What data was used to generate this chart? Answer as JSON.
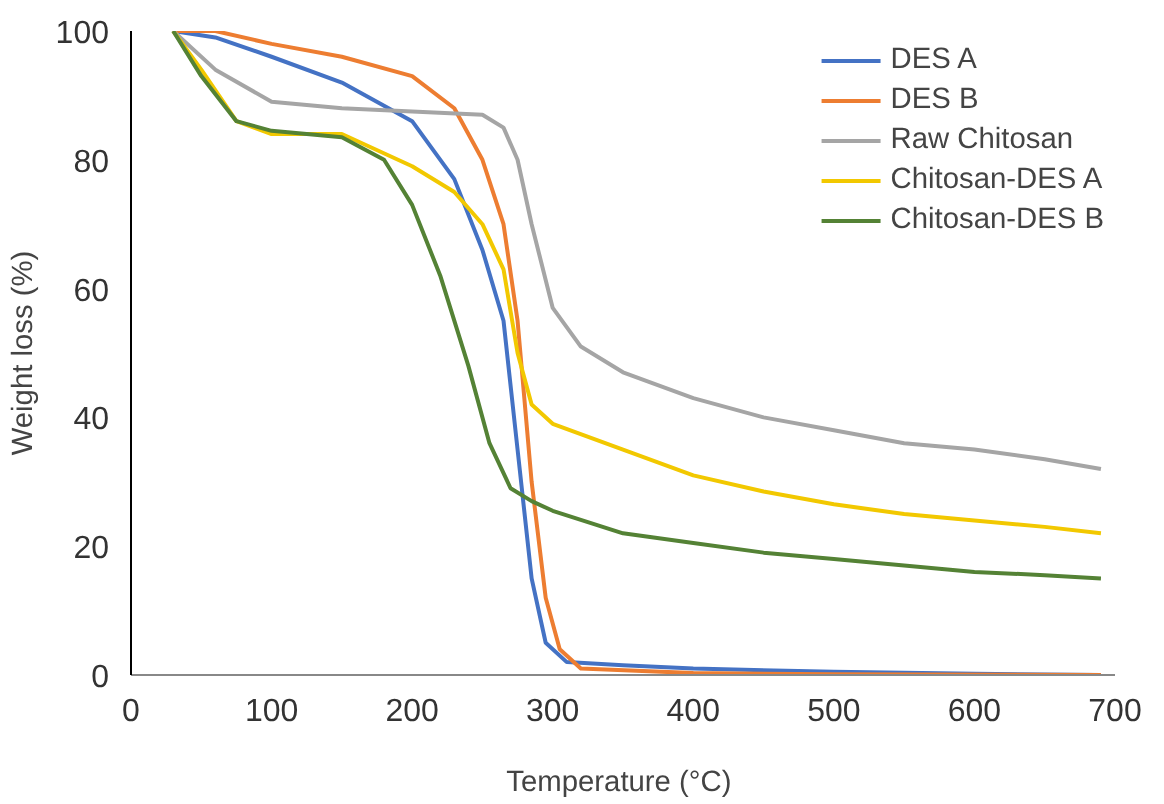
{
  "chart_data": {
    "type": "line",
    "xlabel": "Temperature  (°C)",
    "ylabel": "Weight loss (%)",
    "xlim": [
      0,
      700
    ],
    "ylim": [
      0,
      100
    ],
    "xticks": [
      0,
      100,
      200,
      300,
      400,
      500,
      600,
      700
    ],
    "yticks": [
      0,
      20,
      40,
      60,
      80,
      100
    ],
    "grid": false,
    "legend": "top right",
    "line_style": "solid",
    "marker": "none",
    "series": [
      {
        "name": "DES A",
        "color": "#4472c4",
        "x": [
          30,
          60,
          100,
          150,
          200,
          230,
          250,
          265,
          275,
          285,
          295,
          310,
          350,
          400,
          500,
          600,
          690
        ],
        "values": [
          100,
          99,
          96,
          92,
          86,
          77,
          66,
          55,
          35,
          15,
          5,
          2,
          1.5,
          1,
          0.5,
          0.2,
          0
        ]
      },
      {
        "name": "DES B",
        "color": "#ed7d31",
        "x": [
          30,
          60,
          100,
          150,
          200,
          230,
          250,
          265,
          275,
          285,
          295,
          305,
          320,
          400,
          500,
          690
        ],
        "values": [
          100,
          100,
          98,
          96,
          93,
          88,
          80,
          70,
          55,
          30,
          12,
          4,
          1,
          0.3,
          0.1,
          0
        ]
      },
      {
        "name": "Raw Chitosan",
        "color": "#a5a5a5",
        "x": [
          30,
          60,
          100,
          150,
          200,
          250,
          265,
          275,
          285,
          300,
          320,
          350,
          400,
          450,
          500,
          550,
          600,
          650,
          690
        ],
        "values": [
          100,
          94,
          89,
          88,
          87.5,
          87,
          85,
          80,
          70,
          57,
          51,
          47,
          43,
          40,
          38,
          36,
          35,
          33.5,
          32
        ]
      },
      {
        "name": "Chitosan-DES A",
        "color": "#f2c800",
        "x": [
          30,
          50,
          75,
          100,
          150,
          200,
          230,
          250,
          265,
          275,
          285,
          300,
          350,
          400,
          450,
          500,
          550,
          600,
          650,
          690
        ],
        "values": [
          100,
          94,
          86,
          84,
          84,
          79,
          75,
          70,
          63,
          50,
          42,
          39,
          35,
          31,
          28.5,
          26.5,
          25,
          24,
          23,
          22
        ]
      },
      {
        "name": "Chitosan-DES B",
        "color": "#548235",
        "x": [
          30,
          50,
          75,
          100,
          150,
          180,
          200,
          220,
          240,
          255,
          270,
          285,
          300,
          350,
          400,
          450,
          500,
          550,
          600,
          650,
          690
        ],
        "values": [
          100,
          93,
          86,
          84.5,
          83.5,
          80,
          73,
          62,
          48,
          36,
          29,
          27,
          25.5,
          22,
          20.5,
          19,
          18,
          17,
          16,
          15.5,
          15
        ]
      }
    ]
  }
}
